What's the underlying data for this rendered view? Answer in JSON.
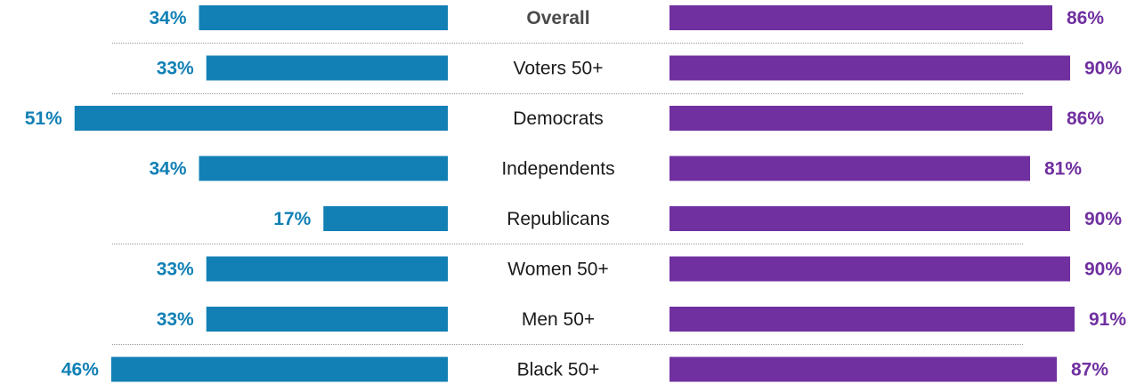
{
  "chart_data": {
    "type": "bar",
    "categories": [
      "Overall",
      "Voters 50+",
      "Democrats",
      "Independents",
      "Republicans",
      "Women 50+",
      "Men 50+",
      "Black 50+"
    ],
    "emphasized_category": "Overall",
    "series": [
      {
        "side": "left",
        "color": "#1280b5",
        "values": [
          34,
          33,
          51,
          34,
          17,
          33,
          33,
          46
        ],
        "labels": [
          "34%",
          "33%",
          "51%",
          "34%",
          "17%",
          "33%",
          "33%",
          "46%"
        ]
      },
      {
        "side": "right",
        "color": "#7030a0",
        "values": [
          86,
          90,
          86,
          81,
          90,
          90,
          91,
          87
        ],
        "labels": [
          "86%",
          "90%",
          "86%",
          "81%",
          "90%",
          "90%",
          "91%",
          "87%"
        ]
      }
    ],
    "dividers_after": [
      "Overall",
      "Voters 50+",
      "Republicans",
      "Men 50+"
    ],
    "xlim": [
      0,
      100
    ]
  }
}
